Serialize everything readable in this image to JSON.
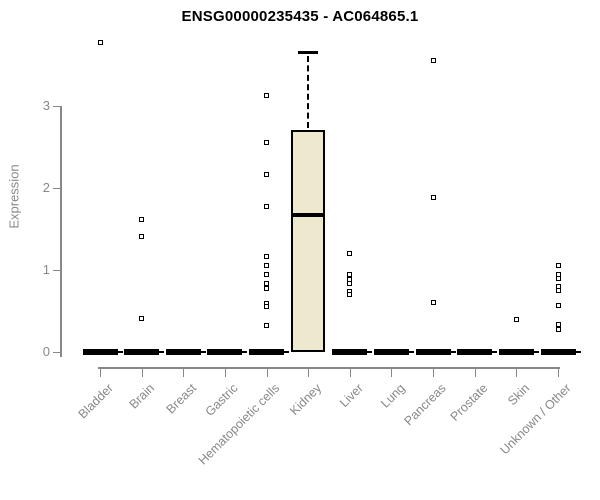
{
  "window": {
    "background": "#ffffff"
  },
  "chart_data": {
    "type": "boxplot",
    "title": "ENSG00000235435 - AC064865.1",
    "xlabel": "",
    "ylabel": "Expression",
    "yticks": [
      0,
      1,
      2,
      3
    ],
    "ylim": [
      0,
      3.9
    ],
    "grid": false,
    "legend": false,
    "colors": {
      "box_fill": "#ede8ce",
      "box_border": "#000000",
      "axis": "#888888",
      "tick_label": "#888888",
      "title": "#000000"
    },
    "categories": [
      "Bladder",
      "Brain",
      "Breast",
      "Gastric",
      "Hematopoietic cells",
      "Kidney",
      "Liver",
      "Lung",
      "Pancreas",
      "Prostate",
      "Skin",
      "Unknown / Other"
    ],
    "series": [
      {
        "name": "Bladder",
        "q1": 0,
        "median": 0,
        "q3": 0,
        "whisker_low": 0,
        "whisker_high": 0,
        "outliers": [
          3.78
        ]
      },
      {
        "name": "Brain",
        "q1": 0,
        "median": 0,
        "q3": 0,
        "whisker_low": 0,
        "whisker_high": 0,
        "outliers": [
          1.61,
          1.41,
          0.41
        ]
      },
      {
        "name": "Breast",
        "q1": 0,
        "median": 0,
        "q3": 0,
        "whisker_low": 0,
        "whisker_high": 0,
        "outliers": []
      },
      {
        "name": "Gastric",
        "q1": 0,
        "median": 0,
        "q3": 0,
        "whisker_low": 0,
        "whisker_high": 0,
        "outliers": []
      },
      {
        "name": "Hematopoietic cells",
        "q1": 0,
        "median": 0,
        "q3": 0,
        "whisker_low": 0,
        "whisker_high": 0,
        "outliers": [
          3.13,
          2.55,
          2.16,
          1.78,
          1.17,
          1.05,
          0.94,
          0.84,
          0.77,
          0.59,
          0.55,
          0.32
        ]
      },
      {
        "name": "Kidney",
        "q1": 0,
        "median": 1.67,
        "q3": 2.71,
        "whisker_low": 0,
        "whisker_high": 3.66,
        "outliers": []
      },
      {
        "name": "Liver",
        "q1": 0,
        "median": 0,
        "q3": 0,
        "whisker_low": 0,
        "whisker_high": 0,
        "outliers": [
          1.2,
          0.94,
          0.89,
          0.83,
          0.74,
          0.7
        ]
      },
      {
        "name": "Lung",
        "q1": 0,
        "median": 0,
        "q3": 0,
        "whisker_low": 0,
        "whisker_high": 0,
        "outliers": []
      },
      {
        "name": "Pancreas",
        "q1": 0,
        "median": 0,
        "q3": 0,
        "whisker_low": 0,
        "whisker_high": 0,
        "outliers": [
          3.56,
          1.88,
          0.6
        ]
      },
      {
        "name": "Prostate",
        "q1": 0,
        "median": 0,
        "q3": 0,
        "whisker_low": 0,
        "whisker_high": 0,
        "outliers": []
      },
      {
        "name": "Skin",
        "q1": 0,
        "median": 0,
        "q3": 0,
        "whisker_low": 0,
        "whisker_high": 0,
        "outliers": [
          0.4
        ]
      },
      {
        "name": "Unknown / Other",
        "q1": 0,
        "median": 0,
        "q3": 0,
        "whisker_low": 0,
        "whisker_high": 0,
        "outliers": [
          1.05,
          0.95,
          0.9,
          0.8,
          0.75,
          0.57,
          0.33,
          0.28
        ]
      }
    ]
  }
}
